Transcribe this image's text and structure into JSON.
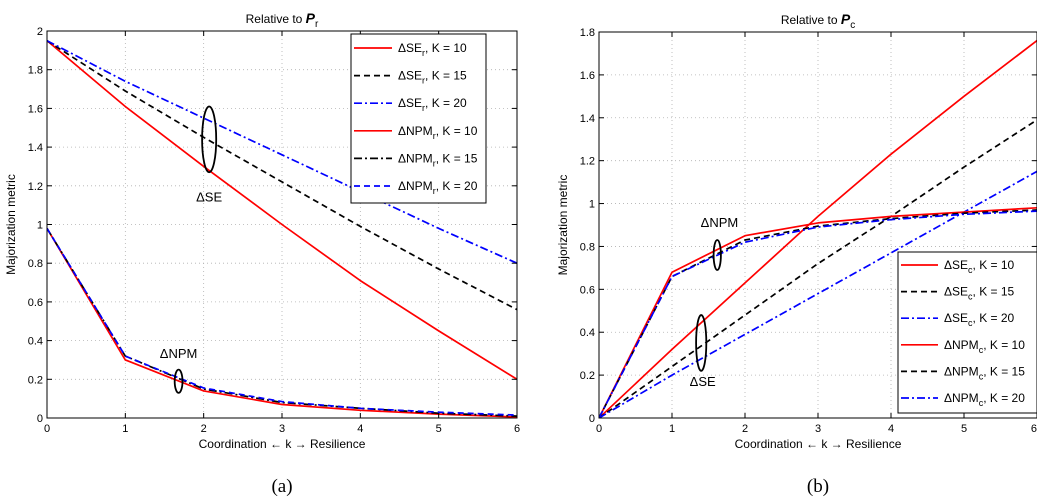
{
  "chart_data": [
    {
      "type": "line",
      "panel_label": "(a)",
      "title": "Relative to P_r",
      "title_text": "Relative to ",
      "title_sym": "P",
      "title_sub": "r",
      "xlabel": "Coordination ← k → Resilience",
      "ylabel": "Majorization metric",
      "xlim": [
        0,
        6
      ],
      "ylim": [
        0,
        2
      ],
      "x_ticks": [
        0,
        1,
        2,
        3,
        4,
        5,
        6
      ],
      "x_tick_labels": [
        "0",
        "1",
        "2",
        "3",
        "4",
        "5",
        "6"
      ],
      "y_ticks": [
        0,
        0.2,
        0.4,
        0.6,
        0.8,
        1,
        1.2,
        1.4,
        1.6,
        1.8,
        2
      ],
      "y_tick_labels": [
        "0",
        "0.2",
        "0.4",
        "0.6",
        "0.8",
        "1",
        "1.2",
        "1.4",
        "1.6",
        "1.8",
        "2"
      ],
      "grid": true,
      "legend_position": "top-right",
      "x": [
        0,
        1,
        2,
        3,
        4,
        5,
        6
      ],
      "series": [
        {
          "name": "ΔSE_r, K = 10",
          "base": "ΔSE",
          "sub": "r",
          "tail": ", K = 10",
          "color": "#ff0000",
          "dash": "solid",
          "values": [
            1.95,
            1.61,
            1.3,
            1.0,
            0.71,
            0.45,
            0.2
          ]
        },
        {
          "name": "ΔSE_r, K = 15",
          "base": "ΔSE",
          "sub": "r",
          "tail": ", K = 15",
          "color": "#000000",
          "dash": "dashed",
          "values": [
            1.95,
            1.69,
            1.45,
            1.22,
            0.99,
            0.77,
            0.56
          ]
        },
        {
          "name": "ΔSE_r, K = 20",
          "base": "ΔSE",
          "sub": "r",
          "tail": ", K = 20",
          "color": "#0000ff",
          "dash": "dashdot",
          "values": [
            1.95,
            1.74,
            1.55,
            1.36,
            1.17,
            0.98,
            0.8
          ]
        },
        {
          "name": "ΔNPM_r, K = 10",
          "base": "ΔNPM",
          "sub": "r",
          "tail": ", K = 10",
          "color": "#ff0000",
          "dash": "solid",
          "values": [
            0.98,
            0.3,
            0.14,
            0.07,
            0.04,
            0.02,
            0.005
          ]
        },
        {
          "name": "ΔNPM_r, K = 15",
          "base": "ΔNPM",
          "sub": "r",
          "tail": ", K = 15",
          "color": "#000000",
          "dash": "dashdot",
          "values": [
            0.98,
            0.32,
            0.15,
            0.08,
            0.05,
            0.025,
            0.01
          ]
        },
        {
          "name": "ΔNPM_r, K = 20",
          "base": "ΔNPM",
          "sub": "r",
          "tail": ", K = 20",
          "color": "#0000ff",
          "dash": "dashed",
          "values": [
            0.98,
            0.32,
            0.155,
            0.085,
            0.05,
            0.03,
            0.015
          ]
        }
      ],
      "annotations": [
        {
          "text": "ΔSE",
          "x": 2.07,
          "y": 1.12,
          "ellipse": {
            "x": 2.07,
            "y": 1.44,
            "rx": 0.09,
            "ry": 0.17
          }
        },
        {
          "text": "ΔNPM",
          "x": 1.68,
          "y": 0.31,
          "ellipse": {
            "x": 1.68,
            "y": 0.19,
            "rx": 0.05,
            "ry": 0.06
          }
        }
      ]
    },
    {
      "type": "line",
      "panel_label": "(b)",
      "title": "Relative to P_c",
      "title_text": "Relative to ",
      "title_sym": "P",
      "title_sub": "c",
      "xlabel": "Coordination ← k → Resilience",
      "ylabel": "Majorization metric",
      "xlim": [
        0,
        6
      ],
      "ylim": [
        0,
        1.8
      ],
      "x_ticks": [
        0,
        1,
        2,
        3,
        4,
        5,
        6
      ],
      "x_tick_labels": [
        "0",
        "1",
        "2",
        "3",
        "4",
        "5",
        "6"
      ],
      "y_ticks": [
        0,
        0.2,
        0.4,
        0.6,
        0.8,
        1,
        1.2,
        1.4,
        1.6,
        1.8
      ],
      "y_tick_labels": [
        "0",
        "0.2",
        "0.4",
        "0.6",
        "0.8",
        "1",
        "1.2",
        "1.4",
        "1.6",
        "1.8"
      ],
      "grid": true,
      "legend_position": "bottom-right",
      "x": [
        0,
        1,
        2,
        3,
        4,
        5,
        6
      ],
      "series": [
        {
          "name": "ΔSE_c, K = 10",
          "base": "ΔSE",
          "sub": "c",
          "tail": ", K = 10",
          "color": "#ff0000",
          "dash": "solid",
          "values": [
            0,
            0.32,
            0.63,
            0.94,
            1.23,
            1.5,
            1.76
          ]
        },
        {
          "name": "ΔSE_c, K = 15",
          "base": "ΔSE",
          "sub": "c",
          "tail": ", K = 15",
          "color": "#000000",
          "dash": "dashed",
          "values": [
            0,
            0.24,
            0.48,
            0.72,
            0.94,
            1.17,
            1.39
          ]
        },
        {
          "name": "ΔSE_c, K = 20",
          "base": "ΔSE",
          "sub": "c",
          "tail": ", K = 20",
          "color": "#0000ff",
          "dash": "dashdot",
          "values": [
            0,
            0.2,
            0.39,
            0.58,
            0.77,
            0.96,
            1.15
          ]
        },
        {
          "name": "ΔNPM_c, K = 10",
          "base": "ΔNPM",
          "sub": "c",
          "tail": ", K = 10",
          "color": "#ff0000",
          "dash": "solid",
          "values": [
            0,
            0.68,
            0.85,
            0.91,
            0.94,
            0.96,
            0.98
          ]
        },
        {
          "name": "ΔNPM_c, K = 15",
          "base": "ΔNPM",
          "sub": "c",
          "tail": ", K = 15",
          "color": "#000000",
          "dash": "dashed",
          "values": [
            0,
            0.66,
            0.83,
            0.895,
            0.93,
            0.955,
            0.97
          ]
        },
        {
          "name": "ΔNPM_c, K = 20",
          "base": "ΔNPM",
          "sub": "c",
          "tail": ", K = 20",
          "color": "#0000ff",
          "dash": "dashdot",
          "values": [
            0,
            0.66,
            0.82,
            0.89,
            0.925,
            0.95,
            0.965
          ]
        }
      ],
      "annotations": [
        {
          "text": "ΔNPM",
          "x": 1.65,
          "y": 0.89,
          "ellipse": {
            "x": 1.62,
            "y": 0.76,
            "rx": 0.05,
            "ry": 0.07
          }
        },
        {
          "text": "ΔSE",
          "x": 1.42,
          "y": 0.15,
          "ellipse": {
            "x": 1.4,
            "y": 0.35,
            "rx": 0.07,
            "ry": 0.13
          }
        }
      ]
    }
  ]
}
